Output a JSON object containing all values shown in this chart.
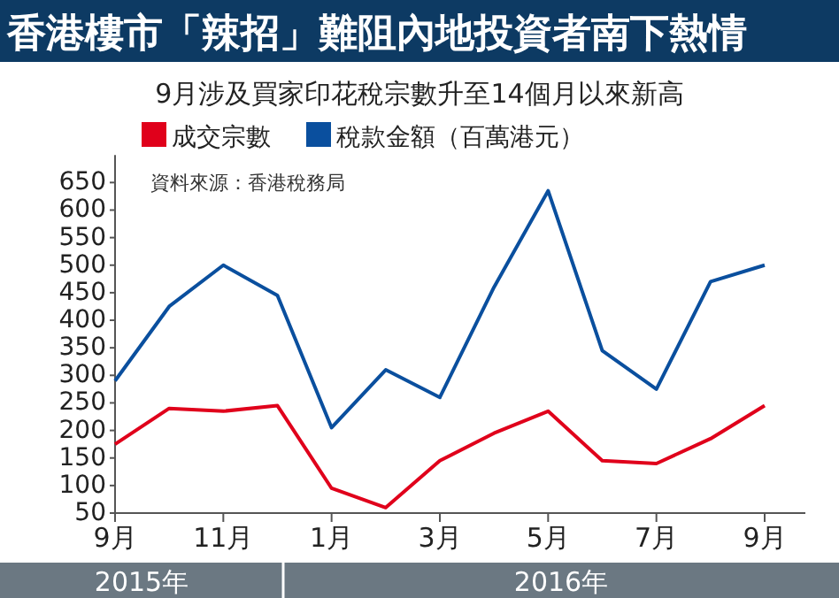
{
  "chart_data": {
    "type": "line",
    "title": "香港樓市「辣招」難阻內地投資者南下熱情",
    "subtitle": "9月涉及買家印花稅宗數升至14個月以來新高",
    "categories": [
      "9月",
      null,
      "11月",
      null,
      "1月",
      null,
      "3月",
      null,
      "5月",
      null,
      "7月",
      null,
      "9月"
    ],
    "series": [
      {
        "name": "成交宗數",
        "color": "#e0001b",
        "values": [
          175,
          240,
          235,
          245,
          95,
          60,
          145,
          195,
          235,
          145,
          140,
          185,
          245
        ]
      },
      {
        "name": "稅款金額（百萬港元）",
        "color": "#0a4f9e",
        "values": [
          290,
          425,
          500,
          445,
          205,
          310,
          260,
          460,
          635,
          345,
          275,
          470,
          500
        ]
      }
    ],
    "ylim": [
      50,
      700
    ],
    "yticks": [
      50,
      100,
      150,
      200,
      250,
      300,
      350,
      400,
      450,
      500,
      550,
      600,
      650
    ],
    "legend": "top left",
    "annotations": [
      "資料來源：香港稅務局",
      "2015年",
      "2016年"
    ]
  }
}
